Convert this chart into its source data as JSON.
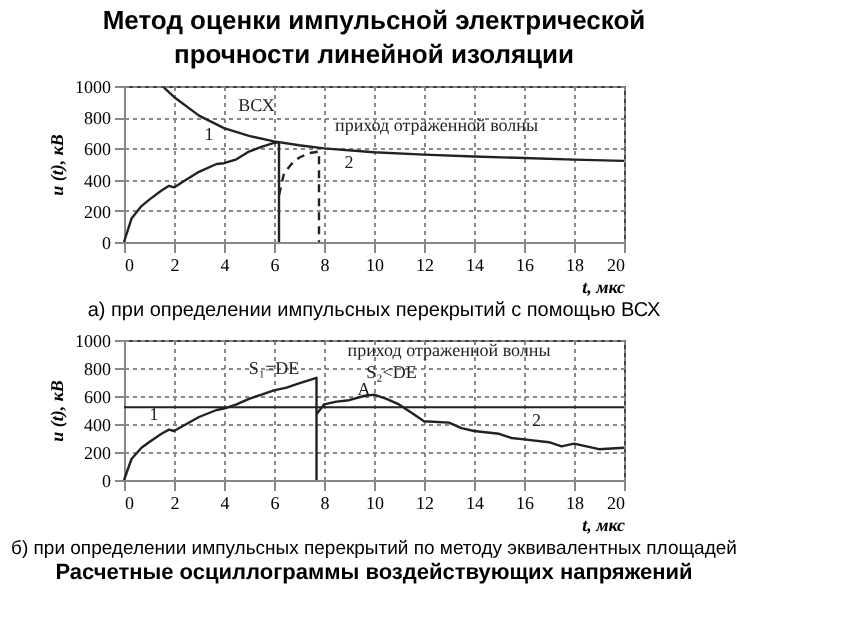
{
  "chart_data": [
    {
      "type": "line",
      "title": "Метод оценки импульсной электрической прочности линейной изоляции",
      "subtitle": "а) при определении импульсных перекрытий с помощью ВСХ",
      "xlabel": "t, мкс",
      "ylabel": "u (t), кВ",
      "xlim": [
        0,
        20
      ],
      "xticks": [
        0,
        2,
        4,
        6,
        8,
        10,
        12,
        14,
        16,
        18,
        20
      ],
      "ylim": [
        0,
        1000
      ],
      "yticks": [
        0,
        200,
        400,
        600,
        800,
        1000
      ],
      "grid": true,
      "marker": "none",
      "series": [
        {
          "color": "#222222",
          "line_style": "solid",
          "x": [
            1.6,
            2,
            3,
            4,
            5,
            6,
            7,
            8,
            10,
            12,
            14,
            16,
            18,
            20
          ],
          "values": [
            990,
            930,
            810,
            730,
            680,
            645,
            620,
            600,
            575,
            560,
            548,
            538,
            528,
            520
          ]
        },
        {
          "color": "#222222",
          "line_style": "solid",
          "x": [
            0,
            0.3,
            0.7,
            1,
            1.5,
            1.8,
            2,
            2.5,
            3,
            3.7,
            4,
            4.5,
            5,
            5.5,
            6,
            6.2,
            6.2
          ],
          "values": [
            0,
            150,
            230,
            270,
            330,
            360,
            350,
            400,
            450,
            500,
            505,
            530,
            580,
            610,
            635,
            640,
            0
          ]
        },
        {
          "color": "#222222",
          "line_style": "dashed",
          "x": [
            6.2,
            6.4,
            6.7,
            7,
            7.4,
            7.8,
            7.8
          ],
          "values": [
            300,
            440,
            500,
            540,
            570,
            580,
            0
          ]
        }
      ],
      "annotations": [
        "ВСХ",
        "1",
        "2",
        "приход отраженной волны"
      ]
    },
    {
      "type": "line",
      "title": "б) при определении импульсных перекрытий по методу эквивалентных площадей",
      "subtitle": "Расчетные осциллограммы воздействующих напряжений",
      "xlabel": "t, мкс",
      "ylabel": "u (t), кВ",
      "xlim": [
        0,
        20
      ],
      "xticks": [
        0,
        2,
        4,
        6,
        8,
        10,
        12,
        14,
        16,
        18,
        20
      ],
      "ylim": [
        0,
        1000
      ],
      "yticks": [
        0,
        200,
        400,
        600,
        800,
        1000
      ],
      "grid": true,
      "marker": "none",
      "series": [
        {
          "color": "#222222",
          "line_style": "solid",
          "x": [
            0,
            0.3,
            0.7,
            1,
            1.5,
            1.8,
            2,
            2.5,
            3,
            3.7,
            4,
            4.5,
            5,
            5.5,
            6,
            6.5,
            7,
            7.7,
            7.7
          ],
          "values": [
            0,
            150,
            230,
            270,
            330,
            360,
            350,
            400,
            450,
            500,
            510,
            540,
            580,
            610,
            640,
            660,
            690,
            730,
            0
          ]
        },
        {
          "color": "#222222",
          "line_style": "solid",
          "x": [
            7.7,
            8,
            8.5,
            9,
            9.6,
            10,
            10.5,
            11,
            11.5,
            12,
            13,
            13.5,
            14,
            15,
            15.5,
            16,
            17,
            17.5,
            18,
            19,
            20
          ],
          "values": [
            470,
            540,
            560,
            570,
            600,
            610,
            580,
            540,
            480,
            420,
            410,
            370,
            350,
            330,
            300,
            290,
            270,
            240,
            260,
            220,
            230
          ]
        }
      ],
      "ref_lines": [
        {
          "axis": "y",
          "value": 520,
          "color": "#222222",
          "line_style": "solid"
        }
      ],
      "annotations": [
        "S₁=DE",
        "S₂<DE",
        "A",
        "приход отраженной волны",
        "1",
        "2"
      ]
    }
  ]
}
